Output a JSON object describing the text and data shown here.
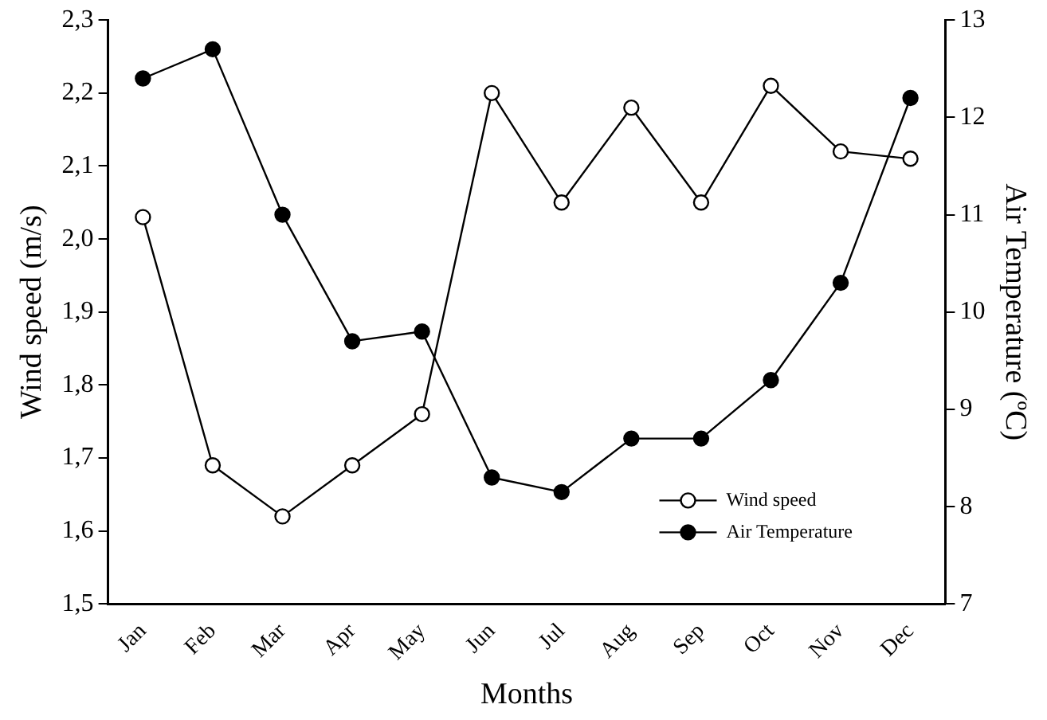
{
  "chart_data": {
    "type": "line",
    "xlabel": "Months",
    "ylabel": "Wind speed (m/s)",
    "y2label": "Air Temperature (ºC)",
    "categories": [
      "Jan",
      "Feb",
      "Mar",
      "Apr",
      "May",
      "Jun",
      "Jul",
      "Aug",
      "Sep",
      "Oct",
      "Nov",
      "Dec"
    ],
    "series": [
      {
        "name": "Wind speed",
        "color": "#ffffff",
        "values": [
          2.03,
          1.69,
          1.62,
          1.69,
          1.76,
          2.2,
          2.05,
          2.18,
          2.05,
          2.21,
          2.12,
          2.11
        ]
      },
      {
        "name": "Air Temperature",
        "color": "#000000",
        "axis": "y2",
        "values": [
          12.4,
          12.7,
          11.0,
          9.7,
          9.8,
          8.3,
          8.15,
          8.7,
          8.7,
          9.3,
          10.3,
          12.2
        ]
      }
    ],
    "ylim": [
      1.5,
      2.3
    ],
    "yticks": [
      {
        "value": 1.5,
        "label": "1,5"
      },
      {
        "value": 1.6,
        "label": "1,6"
      },
      {
        "value": 1.7,
        "label": "1,7"
      },
      {
        "value": 1.8,
        "label": "1,8"
      },
      {
        "value": 1.9,
        "label": "1,9"
      },
      {
        "value": 2.0,
        "label": "2,0"
      },
      {
        "value": 2.1,
        "label": "2,1"
      },
      {
        "value": 2.2,
        "label": "2,2"
      },
      {
        "value": 2.3,
        "label": "2,3"
      }
    ],
    "y2lim": [
      7,
      13
    ],
    "y2ticks": [
      7,
      8,
      9,
      10,
      11,
      12,
      13
    ],
    "grid": false,
    "legend": "bottom right",
    "marker": "circle",
    "line_style": "solid"
  }
}
